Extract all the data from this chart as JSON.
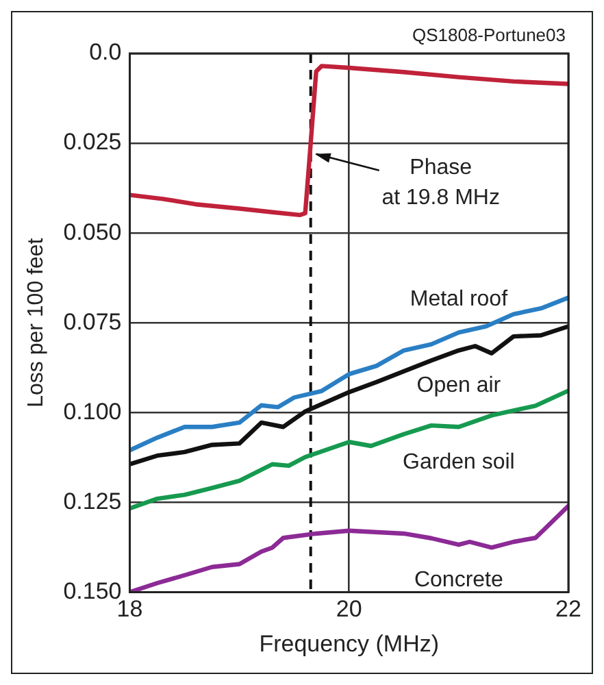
{
  "chart_data": {
    "type": "line",
    "xlabel": "Frequency (MHz)",
    "ylabel": "Loss per 100 feet",
    "xlim": [
      18,
      22
    ],
    "xticks": [
      18,
      20,
      22
    ],
    "ylim": [
      0.15,
      0
    ],
    "yticks": [
      {
        "value": 0,
        "label": "0.0"
      },
      0.025,
      {
        "value": 0.05,
        "label": "0.050"
      },
      0.075,
      {
        "value": 0.1,
        "label": "0.100"
      },
      0.125,
      {
        "value": 0.15,
        "label": "0.150"
      }
    ],
    "grid": true,
    "legend": false,
    "marker": "none",
    "line_style": "solid",
    "series": [
      {
        "color": "#c0223a",
        "x": [
          18,
          18.3,
          18.6,
          19,
          19.3,
          19.55,
          19.6,
          19.65,
          19.7,
          19.75,
          20,
          20.5,
          21,
          21.5,
          22
        ],
        "values": [
          0.0394,
          0.0405,
          0.042,
          0.0432,
          0.0442,
          0.045,
          0.0445,
          0.025,
          0.005,
          0.0035,
          0.004,
          0.0052,
          0.0066,
          0.0078,
          0.0085
        ]
      },
      {
        "name": "Metal roof",
        "color": "#2a7fc4",
        "x": [
          18,
          18.25,
          18.5,
          18.75,
          19,
          19.2,
          19.35,
          19.5,
          19.75,
          20,
          20.25,
          20.5,
          20.75,
          21,
          21.25,
          21.5,
          21.75,
          22
        ],
        "values": [
          0.1105,
          0.107,
          0.104,
          0.104,
          0.1028,
          0.098,
          0.0985,
          0.0958,
          0.094,
          0.0893,
          0.087,
          0.0827,
          0.081,
          0.0777,
          0.076,
          0.0726,
          0.071,
          0.068
        ]
      },
      {
        "name": "Open air",
        "color": "#111111",
        "x": [
          18,
          18.25,
          18.5,
          18.75,
          19,
          19.2,
          19.4,
          19.6,
          19.8,
          20,
          20.25,
          20.5,
          20.75,
          21,
          21.15,
          21.3,
          21.5,
          21.75,
          22
        ],
        "values": [
          0.1144,
          0.112,
          0.111,
          0.109,
          0.1086,
          0.1028,
          0.104,
          0.0997,
          0.097,
          0.0943,
          0.0915,
          0.0885,
          0.0855,
          0.0827,
          0.0815,
          0.0835,
          0.0788,
          0.0785,
          0.076
        ]
      },
      {
        "name": "Garden soil",
        "color": "#169a50",
        "x": [
          18,
          18.25,
          18.5,
          18.75,
          19,
          19.3,
          19.45,
          19.6,
          20,
          20.2,
          20.5,
          20.75,
          21,
          21.3,
          21.7,
          22
        ],
        "values": [
          0.1267,
          0.124,
          0.1229,
          0.121,
          0.119,
          0.1144,
          0.1148,
          0.1124,
          0.1082,
          0.1093,
          0.106,
          0.1036,
          0.104,
          0.1008,
          0.0981,
          0.0939
        ]
      },
      {
        "name": "Concrete",
        "color": "#8c2a96",
        "x": [
          18,
          18.25,
          18.5,
          18.75,
          19,
          19.2,
          19.3,
          19.4,
          19.7,
          20,
          20.5,
          20.75,
          21,
          21.1,
          21.3,
          21.5,
          21.7,
          22
        ],
        "values": [
          0.15,
          0.1475,
          0.1453,
          0.143,
          0.1422,
          0.1387,
          0.1376,
          0.1349,
          0.1337,
          0.1329,
          0.1337,
          0.135,
          0.1368,
          0.136,
          0.1376,
          0.136,
          0.1349,
          0.126
        ]
      }
    ],
    "ref_lines": [
      {
        "axis": "x",
        "value": 19.65,
        "line_style": "dashed",
        "color": "#111111"
      }
    ],
    "annotations": [
      "QS1808-Portune03",
      {
        "text": "Phase\nat 19.8 MHz",
        "x": 19.65,
        "y": 0.028
      }
    ]
  }
}
